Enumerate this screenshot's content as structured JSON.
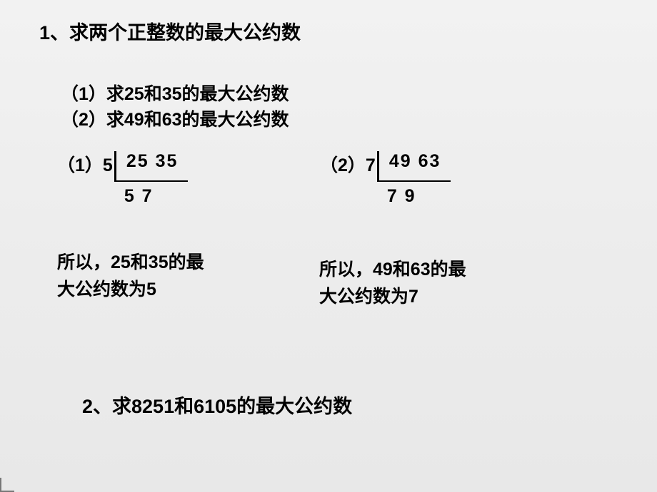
{
  "title": "1、求两个正整数的最大公约数",
  "subs": {
    "s1": "（1）求25和35的最大公约数",
    "s2": "（2）求49和63的最大公约数"
  },
  "calcA": {
    "label": "（1）5",
    "nums": "25   35",
    "under": "  5     7",
    "border_color": "#000000"
  },
  "calcB": {
    "label": "（2）7",
    "nums": "49   63",
    "under": "  7     9",
    "border_color": "#000000"
  },
  "results": {
    "a_l1": "所以，25和35的最",
    "a_l2": "大公约数为5",
    "b_l1": "所以，49和63的最",
    "b_l2": "大公约数为7"
  },
  "q2": "2、求8251和6105的最大公约数",
  "style": {
    "bg_top": "#f2f2f2",
    "bg_bottom": "#e8e8e8",
    "text_color": "#000000",
    "title_fontsize": 27,
    "body_fontsize": 25,
    "font_weight": "bold"
  }
}
